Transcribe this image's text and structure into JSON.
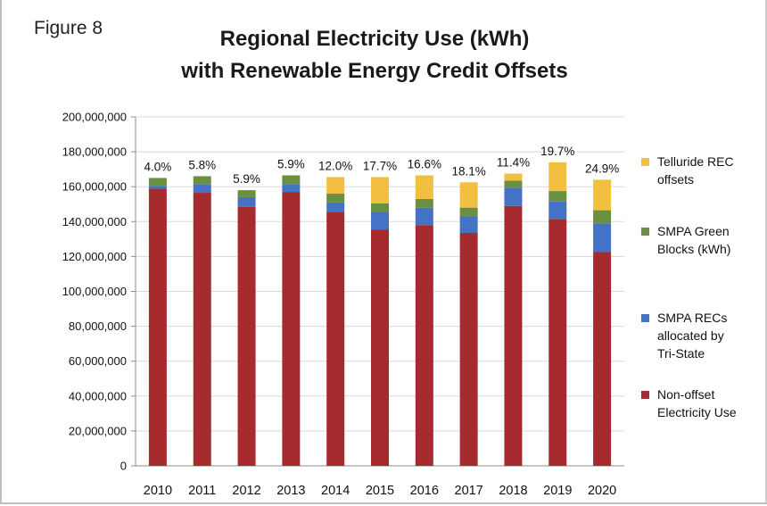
{
  "figure_label": "Figure 8",
  "chart_data": {
    "type": "bar",
    "stacked": true,
    "title_line1": "Regional Electricity Use (kWh)",
    "title_line2": "with Renewable Energy Credit Offsets",
    "categories": [
      "2010",
      "2011",
      "2012",
      "2013",
      "2014",
      "2015",
      "2016",
      "2017",
      "2018",
      "2019",
      "2020"
    ],
    "ylim": [
      0,
      200000000
    ],
    "yticks": [
      0,
      20000000,
      40000000,
      60000000,
      80000000,
      100000000,
      120000000,
      140000000,
      160000000,
      180000000,
      200000000
    ],
    "ytick_labels": [
      "0",
      "20,000,000",
      "40,000,000",
      "60,000,000",
      "80,000,000",
      "100,000,000",
      "120,000,000",
      "140,000,000",
      "160,000,000",
      "180,000,000",
      "200,000,000"
    ],
    "grid": true,
    "legend_position": "right",
    "series": [
      {
        "name": "Non-offset Electricity Use",
        "legend_lines": [
          "Non-offset",
          "Electricity Use"
        ],
        "color": "#a62b2f",
        "values": [
          159000000,
          156500000,
          148500000,
          157000000,
          145500000,
          135500000,
          138000000,
          133500000,
          149000000,
          141500000,
          122500000
        ]
      },
      {
        "name": "SMPA RECs allocated by Tri-State",
        "legend_lines": [
          "SMPA RECs",
          "allocated by",
          "Tri-State"
        ],
        "color": "#4472c4",
        "values": [
          1500000,
          5000000,
          5500000,
          4500000,
          5500000,
          10000000,
          10000000,
          9500000,
          10500000,
          10000000,
          16500000
        ]
      },
      {
        "name": "SMPA Green Blocks (kWh)",
        "legend_lines": [
          "SMPA Green",
          "Blocks (kWh)"
        ],
        "color": "#6a8f3e",
        "values": [
          4500000,
          4500000,
          4000000,
          5000000,
          5000000,
          5000000,
          5000000,
          5000000,
          4000000,
          6000000,
          7500000
        ]
      },
      {
        "name": "Telluride REC offsets",
        "legend_lines": [
          "Telluride REC",
          "offsets"
        ],
        "color": "#f2bf40",
        "values": [
          0,
          0,
          0,
          0,
          9500000,
          15000000,
          13500000,
          14500000,
          4000000,
          16500000,
          17500000
        ]
      }
    ],
    "data_labels": [
      "4.0%",
      "5.8%",
      "5.9%",
      "5.9%",
      "12.0%",
      "17.7%",
      "16.6%",
      "18.1%",
      "11.4%",
      "19.7%",
      "24.9%"
    ]
  }
}
